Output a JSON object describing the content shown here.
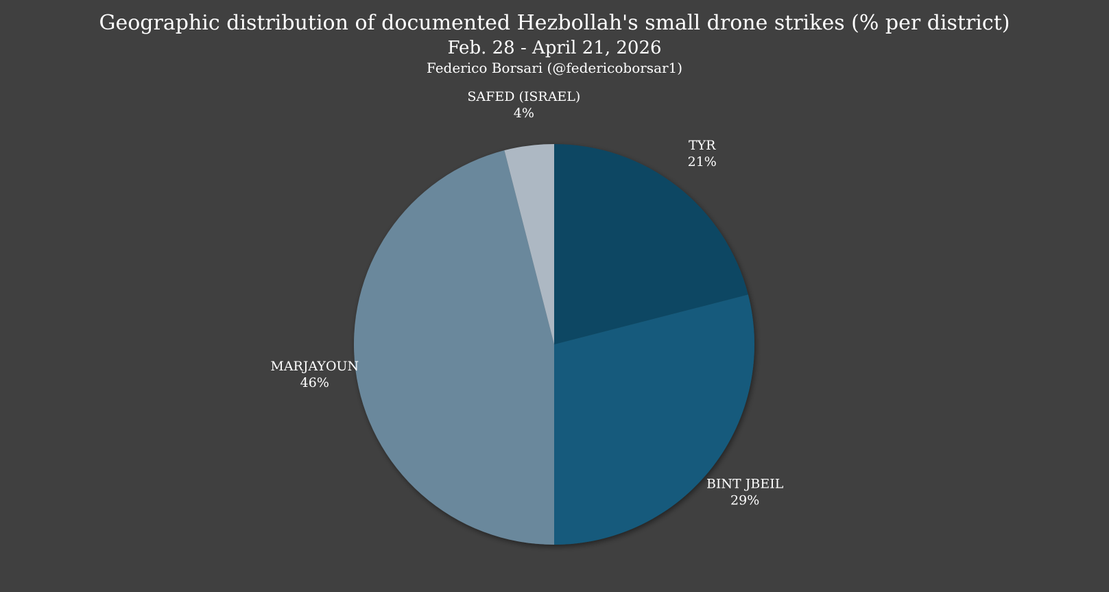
{
  "chart_data": {
    "type": "pie",
    "title": "Geographic distribution of documented Hezbollah's small drone strikes (% per district)",
    "subtitle": "Feb. 28 - April 21, 2026",
    "credit": "Federico Borsari (@federicoborsar1)",
    "slices": [
      {
        "label": "TYR",
        "value": 21,
        "value_label": "21%",
        "color": "#0f4763"
      },
      {
        "label": "BINT JBEIL",
        "value": 29,
        "value_label": "29%",
        "color": "#125a7b"
      },
      {
        "label": "MARJAYOUN",
        "value": 46,
        "value_label": "46%",
        "color": "#6a889c"
      },
      {
        "label": "SAFED (ISRAEL)",
        "value": 4,
        "value_label": "4%",
        "color": "#adb8c3"
      }
    ],
    "start": "12 o'clock",
    "direction": "clockwise",
    "legend": "none",
    "background": "#404040"
  }
}
